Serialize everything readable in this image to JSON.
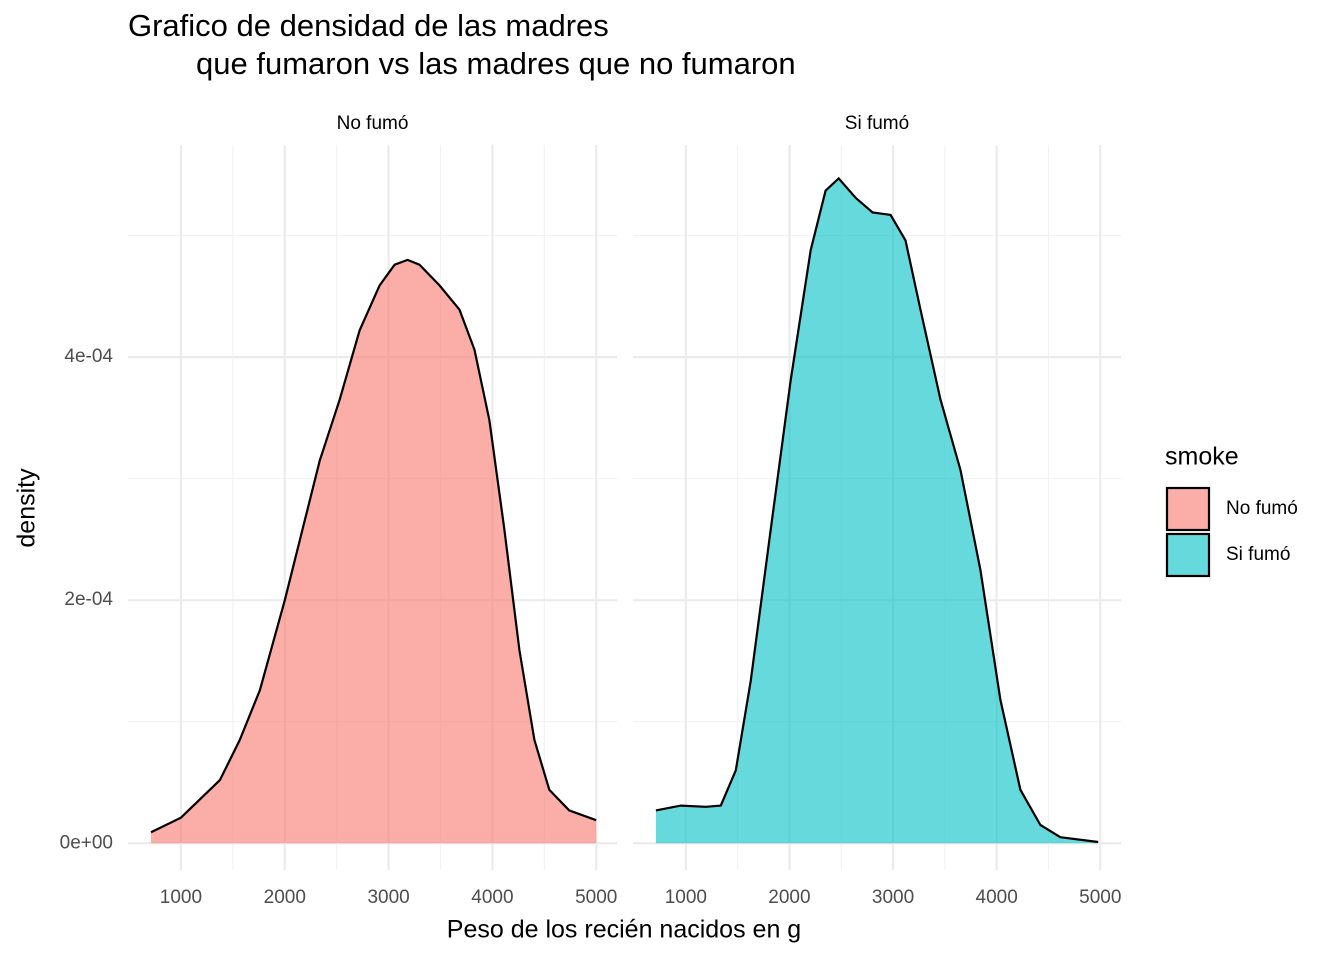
{
  "chart_data": {
    "type": "density",
    "title": [
      "Grafico de densidad de las madres",
      "que fumaron vs las madres que no fumaron"
    ],
    "x_label": "Peso de los recién nacidos en g",
    "y_label": "density",
    "legend_title": "smoke",
    "xlim": [
      490,
      5200
    ],
    "ylim": [
      -2.2e-05,
      0.0005745
    ],
    "xticks": [
      1000,
      2000,
      3000,
      4000,
      5000
    ],
    "yticks": [
      {
        "value": 0,
        "label": "0e+00"
      },
      {
        "value": 0.0002,
        "label": "2e-04"
      },
      {
        "value": 0.0004,
        "label": "4e-04"
      }
    ],
    "xminor": [
      1500,
      2500,
      3500,
      4500
    ],
    "yminor": [
      0.0001,
      0.0003,
      0.0005
    ],
    "grid": true,
    "series": [
      {
        "name": "No fumó",
        "color": "#F8766D",
        "x": [
          712,
          1000,
          1375,
          1567,
          1760,
          2000,
          2144,
          2337,
          2529,
          2721,
          2913,
          3058,
          3183,
          3298,
          3490,
          3683,
          3827,
          3971,
          4115,
          4260,
          4404,
          4548,
          4740,
          5000
        ],
        "values": [
          9e-06,
          2.1e-05,
          5.2e-05,
          8.5e-05,
          0.000126,
          0.0002,
          0.000249,
          0.000315,
          0.000365,
          0.000422,
          0.000459,
          0.000476,
          0.00048,
          0.000476,
          0.000459,
          0.000439,
          0.000406,
          0.000348,
          0.000258,
          0.000159,
          8.5e-05,
          4.4e-05,
          2.7e-05,
          1.9e-05
        ]
      },
      {
        "name": "Si fumó",
        "color": "#00BFC4",
        "x": [
          711,
          952,
          1193,
          1337,
          1482,
          1627,
          1819,
          2012,
          2205,
          2349,
          2475,
          2639,
          2803,
          2976,
          3120,
          3265,
          3458,
          3651,
          3843,
          4036,
          4229,
          4422,
          4614,
          4980
        ],
        "values": [
          2.7e-05,
          3.1e-05,
          3e-05,
          3.1e-05,
          6e-05,
          0.000134,
          0.000258,
          0.000381,
          0.000488,
          0.000537,
          0.000547,
          0.000531,
          0.000519,
          0.000517,
          0.000496,
          0.000439,
          0.000365,
          0.000307,
          0.000225,
          0.000118,
          4.4e-05,
          1.5e-05,
          5e-06,
          1e-06
        ]
      }
    ]
  }
}
